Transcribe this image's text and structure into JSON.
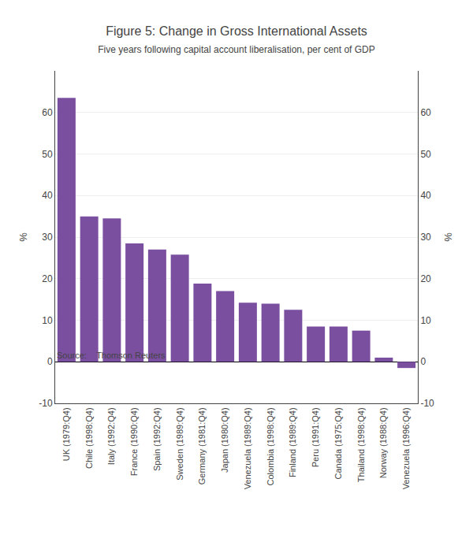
{
  "chart_data": {
    "type": "bar",
    "title": "Figure 5: Change in Gross International Assets",
    "subtitle": "Five years following capital account liberalisation, per cent of GDP",
    "source": "Source:    Thomson Reuters",
    "categories": [
      "UK (1979:Q4)",
      "Chile (1998:Q4)",
      "Italy (1992:Q4)",
      "France (1990:Q4)",
      "Spain (1992:Q4)",
      "Sweden (1989:Q4)",
      "Germany (1981:Q4)",
      "Japan (1980:Q4)",
      "Venezuela (1989:Q4)",
      "Colombia (1998:Q4)",
      "Finland (1989:Q4)",
      "Peru (1991:Q4)",
      "Canada (1975:Q4)",
      "Thailand (1998:Q4)",
      "Norway (1988:Q4)",
      "Venezuela (1996:Q4)"
    ],
    "values": [
      63.5,
      35.0,
      34.5,
      28.5,
      27.0,
      25.8,
      18.8,
      17.0,
      14.2,
      14.0,
      12.5,
      8.5,
      8.5,
      7.5,
      1.0,
      -1.5
    ],
    "color": "#7B4FA0",
    "ylim": [
      -10,
      70
    ],
    "yticks": [
      -10,
      0,
      10,
      20,
      30,
      40,
      50,
      60
    ],
    "y2lim": [
      -10,
      70
    ],
    "y2ticks": [
      -10,
      0,
      10,
      20,
      30,
      40,
      50,
      60
    ],
    "ylabel": "%",
    "y2label": "%",
    "grid": true
  }
}
